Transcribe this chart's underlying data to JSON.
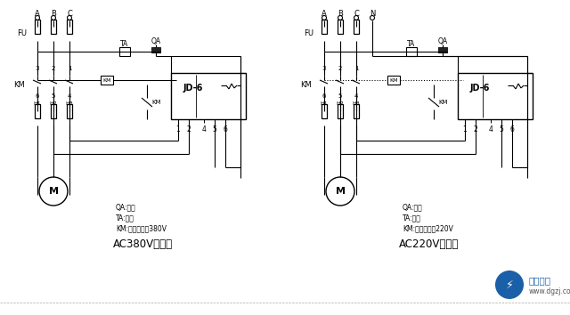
{
  "bg_color": "#ffffff",
  "line_color": "#000000",
  "title1": "AC380V接线图",
  "title2": "AC220V接线图",
  "legend1_line1": "QA:起动",
  "legend1_line2": "TA:停止",
  "legend1_line3": "KM:交流接触器380V",
  "legend2_line1": "QA:起动",
  "legend2_line2": "TA:停止",
  "legend2_line3": "KM:交流接触器220V",
  "jd6_label": "JD-6",
  "box_labels": [
    "1",
    "2",
    "4",
    "5",
    "6"
  ],
  "logo_circle_color": "#1a5fa8",
  "logo_text1": "电工之家",
  "logo_text2": "www.dgzj.com",
  "bottom_bar_color": "#c8c8c8"
}
